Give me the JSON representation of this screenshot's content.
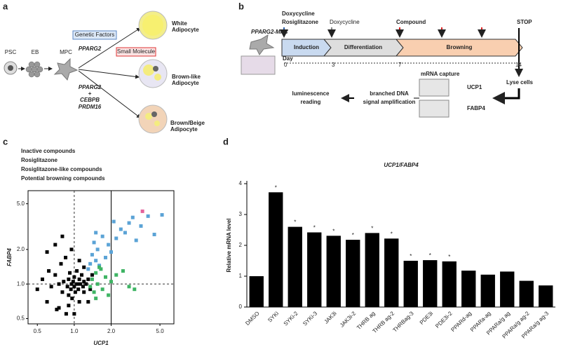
{
  "panel_a": {
    "label": "a",
    "nodes": [
      "PSC",
      "EB",
      "MPC"
    ],
    "genetic_factors": "Genetic Factors",
    "small_molecule": "Small Molecule",
    "pparg2": "PPARG2",
    "combo": [
      "PPARG2",
      "+",
      "CEBPB",
      "PRDM16"
    ],
    "outcomes": [
      [
        "White",
        "Adipocyte"
      ],
      [
        "Brown-like",
        "Adipocyte"
      ],
      [
        "Brown/Beige",
        "Adipocyte"
      ]
    ]
  },
  "panel_b": {
    "label": "b",
    "cell_line": "PPARG2-MPC",
    "treat1": [
      "Doxycycline",
      "Rosiglitazone"
    ],
    "treat2": "Doxycycline",
    "compound": "Compound",
    "stop": "STOP",
    "stages": [
      "Induction",
      "Differentiation",
      "Browning"
    ],
    "day": "Day",
    "days": [
      "0",
      "3",
      "7",
      "14"
    ],
    "mrna": "mRNA capture",
    "genes": [
      "UCP1",
      "FABP4"
    ],
    "lyse": "Lyse cells",
    "bdna": [
      "branched DNA",
      "signal amplification"
    ],
    "lum": [
      "luminescence",
      "reading"
    ]
  },
  "chart_data": [
    {
      "type": "scatter",
      "label": "c",
      "xlabel": "UCP1",
      "ylabel": "FABP4",
      "log": true,
      "xlim": [
        0.42,
        6.5
      ],
      "ylim": [
        0.45,
        6.5
      ],
      "xticks": [
        0.5,
        {
          "value": 1,
          "label": "1.0"
        },
        {
          "value": 2,
          "label": "2.0"
        },
        {
          "value": 5,
          "label": "5.0"
        }
      ],
      "yticks": [
        0.5,
        {
          "value": 1,
          "label": "1.0"
        },
        {
          "value": 2,
          "label": "2.0"
        },
        {
          "value": 5,
          "label": "5.0"
        }
      ],
      "dashed_x": 1,
      "dashed_y": 1,
      "solid_x": 2,
      "series": [
        {
          "name": "Inactive compounds",
          "color": "#000000",
          "x": [
            0.5,
            0.55,
            0.6,
            0.62,
            0.65,
            0.7,
            0.72,
            0.75,
            0.78,
            0.8,
            0.82,
            0.85,
            0.86,
            0.88,
            0.9,
            0.9,
            0.92,
            0.94,
            0.95,
            0.96,
            0.98,
            1.0,
            1.0,
            1.02,
            1.05,
            1.05,
            1.08,
            1.1,
            1.1,
            1.12,
            1.15,
            1.18,
            1.2,
            1.2,
            1.25,
            1.3,
            1.35,
            1.4,
            0.7,
            0.8,
            0.95,
            1.0,
            1.1,
            0.6,
            0.75,
            0.9,
            1.2,
            1.3
          ],
          "y": [
            0.9,
            1.1,
            0.7,
            1.3,
            0.95,
            1.2,
            0.6,
            1.0,
            1.5,
            0.85,
            1.05,
            1.7,
            0.55,
            0.95,
            1.1,
            0.8,
            1.25,
            0.9,
            1.0,
            0.75,
            1.05,
            0.95,
            1.15,
            0.85,
            1.0,
            1.3,
            0.9,
            1.1,
            0.7,
            1.0,
            1.2,
            0.95,
            0.85,
            1.05,
            1.0,
            1.1,
            0.9,
            1.2,
            2.2,
            2.6,
            2.0,
            0.55,
            1.6,
            1.9,
            0.62,
            0.65,
            1.4,
            0.7
          ]
        },
        {
          "name": "Rosiglitazone",
          "color": "#e3629b",
          "x": [
            3.6
          ],
          "y": [
            4.3
          ]
        },
        {
          "name": "Rosiglitazone-like compounds",
          "color": "#5ba3d6",
          "x": [
            1.35,
            1.4,
            1.45,
            1.5,
            1.55,
            1.6,
            1.7,
            1.8,
            1.9,
            2.0,
            2.2,
            2.4,
            2.6,
            2.8,
            3.0,
            3.2,
            3.5,
            4.0,
            4.5,
            5.2,
            1.3,
            1.5,
            2.1
          ],
          "y": [
            1.5,
            1.8,
            2.3,
            1.6,
            2.0,
            1.45,
            2.6,
            1.7,
            2.2,
            1.9,
            2.5,
            3.0,
            2.8,
            3.4,
            3.8,
            2.4,
            3.2,
            3.9,
            2.7,
            4.0,
            1.35,
            2.8,
            3.5
          ]
        },
        {
          "name": "Potential browning compounds",
          "color": "#3fb464",
          "x": [
            1.35,
            1.4,
            1.45,
            1.5,
            1.55,
            1.6,
            1.7,
            1.8,
            1.9,
            2.0,
            2.2,
            2.5,
            2.8,
            3.1,
            1.5,
            1.65
          ],
          "y": [
            0.95,
            1.1,
            0.85,
            1.25,
            1.0,
            1.4,
            0.9,
            1.15,
            0.8,
            1.05,
            1.2,
            1.3,
            0.95,
            0.9,
            0.75,
            1.35
          ]
        }
      ]
    },
    {
      "type": "bar",
      "label": "d",
      "title": "UCP1/FABP4",
      "ylabel": "Relative mRNA level",
      "color": "#000000",
      "ylim": [
        0,
        4
      ],
      "yticks": [
        0,
        1,
        2,
        3,
        4
      ],
      "categories": [
        "DMSO",
        "SYKi",
        "SYKi-2",
        "SYKi-3",
        "JAK3i",
        "JAK3i-2",
        "THRB ag",
        "THRB ag-2",
        "THRBag-3",
        "PDE3i",
        "PDE3i-2",
        "PPARd-ag",
        "PPARa-ag",
        "PPARa/g ag",
        "PPARa/g ag-2",
        "PPARa/g ag-3"
      ],
      "values": [
        1.0,
        3.72,
        2.6,
        2.42,
        2.31,
        2.18,
        2.4,
        2.22,
        1.5,
        1.52,
        1.48,
        1.18,
        1.05,
        1.15,
        0.85,
        0.7
      ],
      "significance": [
        null,
        "*",
        "*",
        "*",
        "*",
        "*",
        "*",
        "*",
        "*",
        "*",
        "*",
        null,
        null,
        null,
        null,
        null
      ]
    }
  ]
}
